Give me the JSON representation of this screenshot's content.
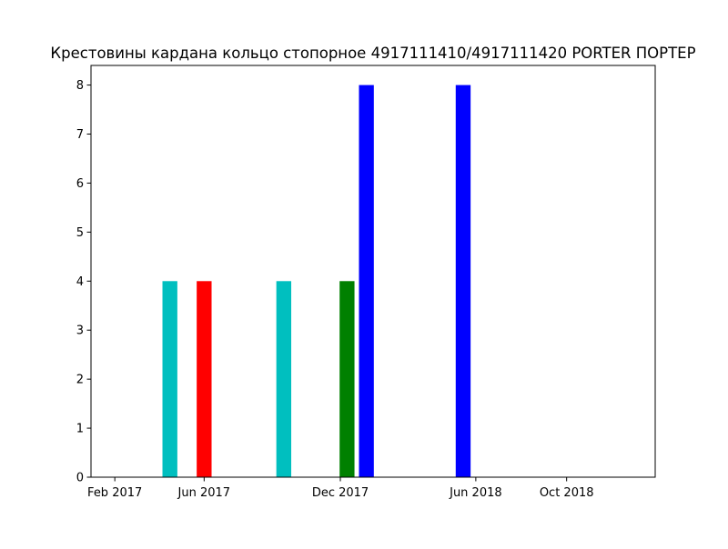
{
  "chart_data": {
    "type": "bar",
    "title": "Крестовины кардана кольцо стопорное 4917111410/4917111420 PORTER ПОРТЕР",
    "xlabel": "",
    "ylabel": "",
    "x_axis": {
      "type": "date",
      "range": [
        "2016-12-31",
        "2019-01-28"
      ],
      "ticks": [
        {
          "date": "2017-02-01",
          "label": "Feb 2017"
        },
        {
          "date": "2017-06-01",
          "label": "Jun 2017"
        },
        {
          "date": "2017-12-01",
          "label": "Dec 2017"
        },
        {
          "date": "2018-06-01",
          "label": "Jun 2018"
        },
        {
          "date": "2018-10-01",
          "label": "Oct 2018"
        }
      ]
    },
    "y_axis": {
      "range": [
        0,
        8.4
      ],
      "ticks": [
        0,
        1,
        2,
        3,
        4,
        5,
        6,
        7,
        8
      ]
    },
    "grid": false,
    "legend": "none",
    "bars": [
      {
        "date": "2017-04-16",
        "value": 4,
        "color": "#00bfbf"
      },
      {
        "date": "2017-06-01",
        "value": 4,
        "color": "#ff0000"
      },
      {
        "date": "2017-09-16",
        "value": 4,
        "color": "#00bfbf"
      },
      {
        "date": "2017-12-10",
        "value": 4,
        "color": "#008000"
      },
      {
        "date": "2018-01-05",
        "value": 8,
        "color": "#0000ff"
      },
      {
        "date": "2018-05-15",
        "value": 8,
        "color": "#0000ff"
      }
    ]
  }
}
